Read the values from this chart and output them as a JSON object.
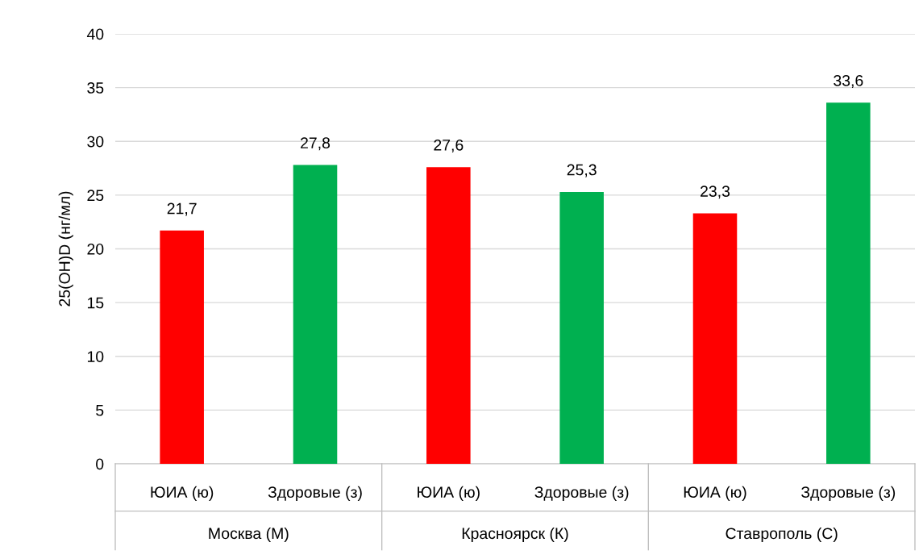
{
  "chart_data": {
    "type": "bar",
    "ylabel": "25(OH)D (нг/мл)",
    "categories": [
      "ЮИА (ю)",
      "Здоровые (з)",
      "ЮИА (ю)",
      "Здоровые (з)",
      "ЮИА (ю)",
      "Здоровые (з)"
    ],
    "values": [
      21.7,
      27.8,
      27.6,
      25.3,
      23.3,
      33.6
    ],
    "colors": [
      "#ff0000",
      "#00b050",
      "#ff0000",
      "#00b050",
      "#ff0000",
      "#00b050"
    ],
    "ylim": [
      0,
      40
    ],
    "yticks": [
      0,
      5,
      10,
      15,
      20,
      25,
      30,
      35,
      40
    ],
    "grid": "y",
    "value_labels": [
      "21,7",
      "27,8",
      "27,6",
      "25,3",
      "23,3",
      "33,6"
    ],
    "annotations": [
      "Москва (М)",
      "Красноярск (К)",
      "Ставрополь (С)"
    ]
  }
}
